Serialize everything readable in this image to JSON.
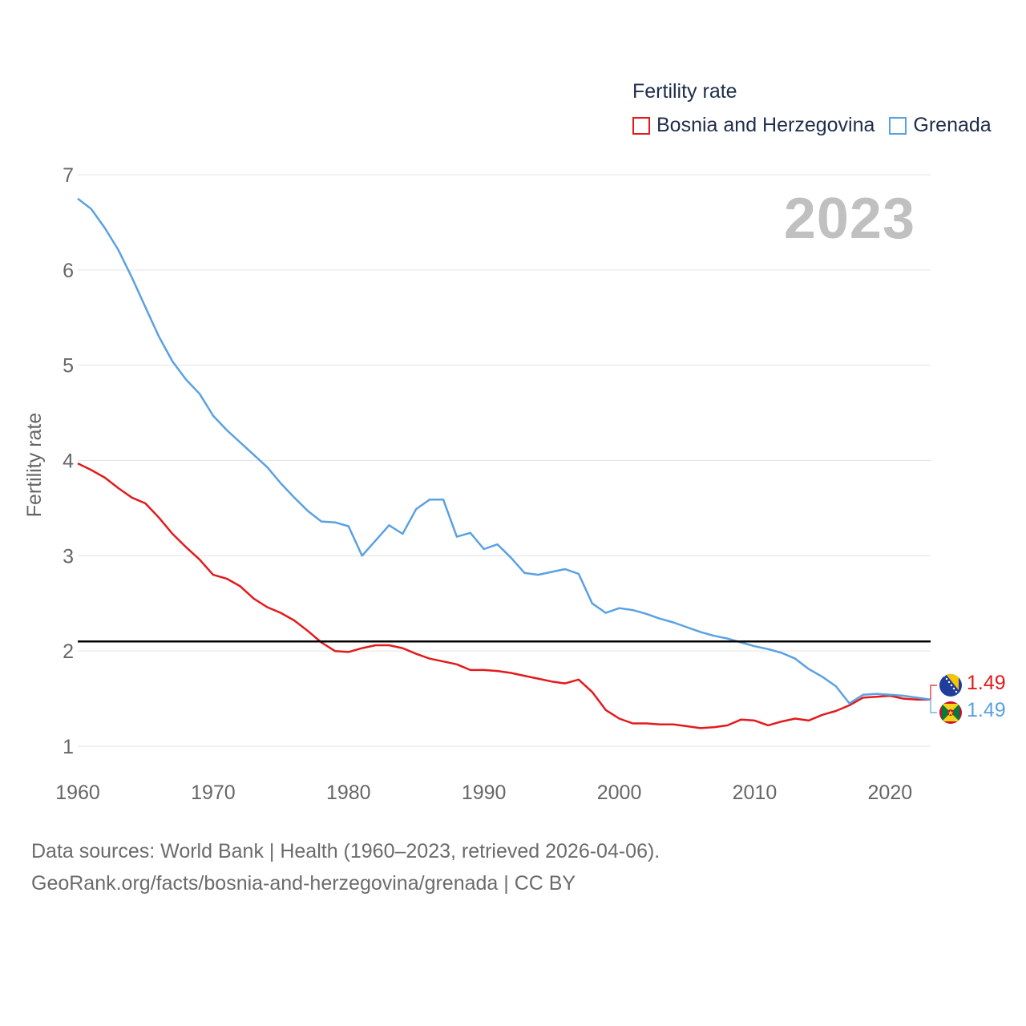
{
  "legend": {
    "title": "Fertility rate",
    "items": [
      {
        "label": "Bosnia and Herzegovina",
        "color": "#e31a1c"
      },
      {
        "label": "Grenada",
        "color": "#5aa1e3"
      }
    ]
  },
  "year_badge": "2023",
  "end_labels": {
    "bosnia": "1.49",
    "grenada": "1.49"
  },
  "source": {
    "line1": "Data sources: World Bank | Health (1960–2023, retrieved 2026-04-06).",
    "line2": "GeoRank.org/facts/bosnia-and-herzegovina/grenada | CC BY"
  },
  "chart_data": {
    "type": "line",
    "title": "Fertility rate",
    "xlabel": "",
    "ylabel": "Fertility rate",
    "xlim": [
      1960,
      2023
    ],
    "ylim": [
      1,
      7
    ],
    "x_ticks": [
      1960,
      1970,
      1980,
      1990,
      2000,
      2010,
      2020
    ],
    "y_ticks": [
      1,
      2,
      3,
      4,
      5,
      6,
      7
    ],
    "reference_line": {
      "y": 2.1,
      "color": "#000000"
    },
    "x": [
      1960,
      1961,
      1962,
      1963,
      1964,
      1965,
      1966,
      1967,
      1968,
      1969,
      1970,
      1971,
      1972,
      1973,
      1974,
      1975,
      1976,
      1977,
      1978,
      1979,
      1980,
      1981,
      1982,
      1983,
      1984,
      1985,
      1986,
      1987,
      1988,
      1989,
      1990,
      1991,
      1992,
      1993,
      1994,
      1995,
      1996,
      1997,
      1998,
      1999,
      2000,
      2001,
      2002,
      2003,
      2004,
      2005,
      2006,
      2007,
      2008,
      2009,
      2010,
      2011,
      2012,
      2013,
      2014,
      2015,
      2016,
      2017,
      2018,
      2019,
      2020,
      2021,
      2022,
      2023
    ],
    "series": [
      {
        "name": "Bosnia and Herzegovina",
        "color": "#e31a1c",
        "values": [
          3.97,
          3.9,
          3.82,
          3.71,
          3.61,
          3.55,
          3.4,
          3.23,
          3.09,
          2.96,
          2.8,
          2.76,
          2.68,
          2.55,
          2.46,
          2.4,
          2.32,
          2.21,
          2.09,
          2.0,
          1.99,
          2.03,
          2.06,
          2.06,
          2.03,
          1.97,
          1.92,
          1.89,
          1.86,
          1.8,
          1.8,
          1.79,
          1.77,
          1.74,
          1.71,
          1.68,
          1.66,
          1.7,
          1.57,
          1.38,
          1.29,
          1.24,
          1.24,
          1.23,
          1.23,
          1.21,
          1.19,
          1.2,
          1.22,
          1.28,
          1.27,
          1.22,
          1.26,
          1.29,
          1.27,
          1.33,
          1.37,
          1.43,
          1.51,
          1.52,
          1.53,
          1.5,
          1.49,
          1.49
        ]
      },
      {
        "name": "Grenada",
        "color": "#5aa1e3",
        "values": [
          6.75,
          6.64,
          6.44,
          6.21,
          5.92,
          5.61,
          5.3,
          5.04,
          4.85,
          4.7,
          4.47,
          4.32,
          4.19,
          4.06,
          3.93,
          3.76,
          3.61,
          3.47,
          3.36,
          3.35,
          3.31,
          3.0,
          3.16,
          3.32,
          3.23,
          3.49,
          3.59,
          3.59,
          3.2,
          3.24,
          3.07,
          3.12,
          2.98,
          2.82,
          2.8,
          2.83,
          2.86,
          2.81,
          2.5,
          2.4,
          2.45,
          2.43,
          2.39,
          2.34,
          2.3,
          2.25,
          2.2,
          2.16,
          2.13,
          2.09,
          2.05,
          2.02,
          1.98,
          1.92,
          1.81,
          1.73,
          1.63,
          1.45,
          1.54,
          1.55,
          1.54,
          1.53,
          1.51,
          1.49
        ]
      }
    ]
  }
}
